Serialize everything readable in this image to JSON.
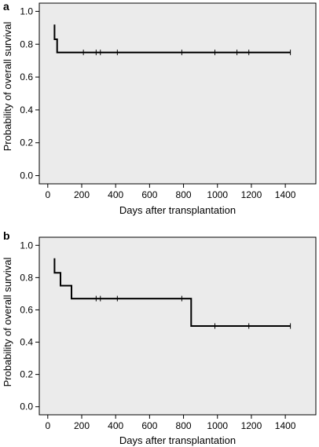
{
  "chart_data": [
    {
      "panel_label": "a",
      "type": "line",
      "step": true,
      "xlabel": "Days after transplantation",
      "ylabel": "Probability of overall survival",
      "xlim": [
        -50,
        1580
      ],
      "ylim": [
        -0.05,
        1.05
      ],
      "xticks": [
        0,
        200,
        400,
        600,
        800,
        1000,
        1200,
        1400
      ],
      "yticks": [
        0.0,
        0.2,
        0.4,
        0.6,
        0.8,
        1.0
      ],
      "xtick_labels": [
        "0",
        "200",
        "400",
        "600",
        "800",
        "1000",
        "1200",
        "1400"
      ],
      "ytick_labels": [
        "0.0",
        "0.2",
        "0.4",
        "0.6",
        "0.8",
        "1.0"
      ],
      "series": [
        {
          "x": [
            40,
            40,
            55,
            55,
            85,
            85,
            1430
          ],
          "y": [
            0.92,
            0.83,
            0.83,
            0.75,
            0.75,
            0.75,
            0.75
          ]
        }
      ],
      "censored": [
        {
          "x": 210,
          "y": 0.75
        },
        {
          "x": 285,
          "y": 0.75
        },
        {
          "x": 310,
          "y": 0.75
        },
        {
          "x": 410,
          "y": 0.75
        },
        {
          "x": 790,
          "y": 0.75
        },
        {
          "x": 985,
          "y": 0.75
        },
        {
          "x": 1115,
          "y": 0.75
        },
        {
          "x": 1185,
          "y": 0.75
        },
        {
          "x": 1430,
          "y": 0.75
        }
      ]
    },
    {
      "panel_label": "b",
      "type": "line",
      "step": true,
      "xlabel": "Days after transplantation",
      "ylabel": "Probability of overall survival",
      "xlim": [
        -50,
        1580
      ],
      "ylim": [
        -0.05,
        1.05
      ],
      "xticks": [
        0,
        200,
        400,
        600,
        800,
        1000,
        1200,
        1400
      ],
      "yticks": [
        0.0,
        0.2,
        0.4,
        0.6,
        0.8,
        1.0
      ],
      "xtick_labels": [
        "0",
        "200",
        "400",
        "600",
        "800",
        "1000",
        "1200",
        "1400"
      ],
      "ytick_labels": [
        "0.0",
        "0.2",
        "0.4",
        "0.6",
        "0.8",
        "1.0"
      ],
      "series": [
        {
          "x": [
            40,
            40,
            75,
            75,
            140,
            140,
            845,
            845,
            1430
          ],
          "y": [
            0.92,
            0.83,
            0.83,
            0.75,
            0.75,
            0.67,
            0.67,
            0.5,
            0.5
          ]
        }
      ],
      "censored": [
        {
          "x": 285,
          "y": 0.67
        },
        {
          "x": 310,
          "y": 0.67
        },
        {
          "x": 410,
          "y": 0.67
        },
        {
          "x": 790,
          "y": 0.67
        },
        {
          "x": 985,
          "y": 0.5
        },
        {
          "x": 1185,
          "y": 0.5
        },
        {
          "x": 1430,
          "y": 0.5
        }
      ]
    }
  ]
}
